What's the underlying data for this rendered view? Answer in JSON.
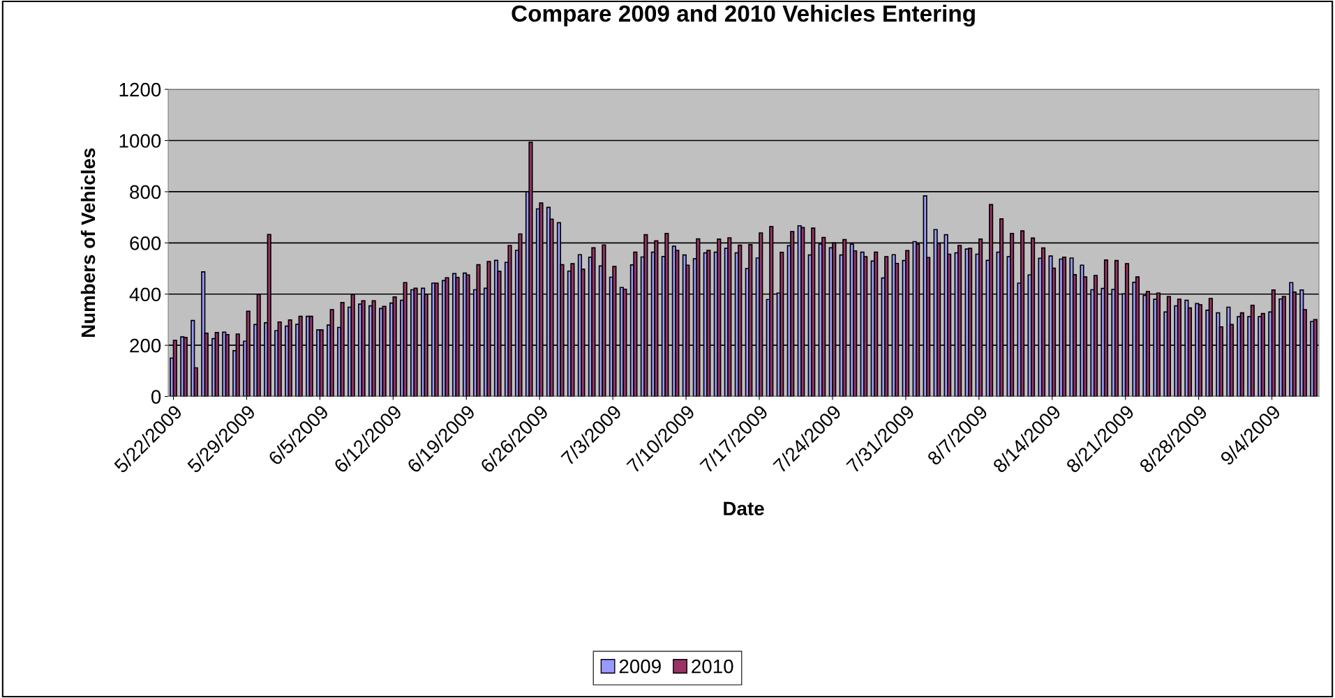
{
  "chart_data": {
    "type": "bar",
    "title": "Compare 2009 and 2010 Vehicles Entering",
    "xlabel": "Date",
    "ylabel": "Numbers of Vehicles",
    "categories": [
      "5/22/2009",
      null,
      null,
      null,
      null,
      null,
      null,
      "5/29/2009",
      null,
      null,
      null,
      null,
      null,
      null,
      "6/5/2009",
      null,
      null,
      null,
      null,
      null,
      null,
      "6/12/2009",
      null,
      null,
      null,
      null,
      null,
      null,
      "6/19/2009",
      null,
      null,
      null,
      null,
      null,
      null,
      "6/26/2009",
      null,
      null,
      null,
      null,
      null,
      null,
      "7/3/2009",
      null,
      null,
      null,
      null,
      null,
      null,
      "7/10/2009",
      null,
      null,
      null,
      null,
      null,
      null,
      "7/17/2009",
      null,
      null,
      null,
      null,
      null,
      null,
      "7/24/2009",
      null,
      null,
      null,
      null,
      null,
      null,
      "7/31/2009",
      null,
      null,
      null,
      null,
      null,
      null,
      "8/7/2009",
      null,
      null,
      null,
      null,
      null,
      null,
      "8/14/2009",
      null,
      null,
      null,
      null,
      null,
      null,
      "8/21/2009",
      null,
      null,
      null,
      null,
      null,
      null,
      "8/28/2009",
      null,
      null,
      null,
      null,
      null,
      null,
      "9/4/2009",
      null,
      null,
      null,
      null
    ],
    "series": [
      {
        "name": "2009",
        "color": "#9999ff",
        "values": [
          150,
          233,
          297,
          487,
          226,
          251,
          179,
          216,
          281,
          288,
          257,
          275,
          282,
          313,
          260,
          279,
          270,
          349,
          361,
          354,
          344,
          365,
          376,
          417,
          423,
          443,
          453,
          480,
          482,
          417,
          423,
          532,
          524,
          571,
          800,
          733,
          739,
          679,
          490,
          554,
          544,
          510,
          466,
          426,
          514,
          545,
          564,
          547,
          587,
          553,
          538,
          561,
          564,
          579,
          561,
          500,
          541,
          379,
          404,
          589,
          667,
          553,
          596,
          581,
          553,
          595,
          564,
          529,
          463,
          554,
          531,
          605,
          784,
          652,
          632,
          561,
          576,
          556,
          532,
          564,
          546,
          443,
          475,
          540,
          549,
          537,
          541,
          513,
          417,
          422,
          418,
          401,
          446,
          395,
          380,
          330,
          354,
          376,
          363,
          337,
          327,
          349,
          312,
          312,
          312,
          330,
          381,
          445,
          416,
          293
        ]
      },
      {
        "name": "2010",
        "color": "#993366",
        "values": [
          219,
          230,
          112,
          247,
          250,
          242,
          244,
          333,
          399,
          633,
          291,
          299,
          313,
          313,
          260,
          339,
          367,
          398,
          374,
          374,
          352,
          389,
          445,
          423,
          399,
          443,
          464,
          465,
          475,
          515,
          527,
          489,
          590,
          635,
          993,
          756,
          693,
          515,
          519,
          497,
          581,
          592,
          508,
          419,
          564,
          632,
          608,
          637,
          571,
          513,
          616,
          571,
          615,
          620,
          591,
          593,
          639,
          664,
          563,
          644,
          660,
          658,
          621,
          600,
          613,
          569,
          546,
          564,
          546,
          520,
          570,
          595,
          543,
          598,
          556,
          590,
          579,
          615,
          750,
          694,
          637,
          647,
          619,
          580,
          501,
          544,
          476,
          467,
          473,
          533,
          531,
          519,
          467,
          410,
          404,
          390,
          380,
          346,
          358,
          383,
          272,
          281,
          327,
          356,
          324,
          416,
          390,
          408,
          339,
          300
        ]
      }
    ],
    "ylim": [
      0,
      1200
    ],
    "yticks": [
      0,
      200,
      400,
      600,
      800,
      1000,
      1200
    ],
    "grid": "y",
    "legend": "bottom"
  }
}
